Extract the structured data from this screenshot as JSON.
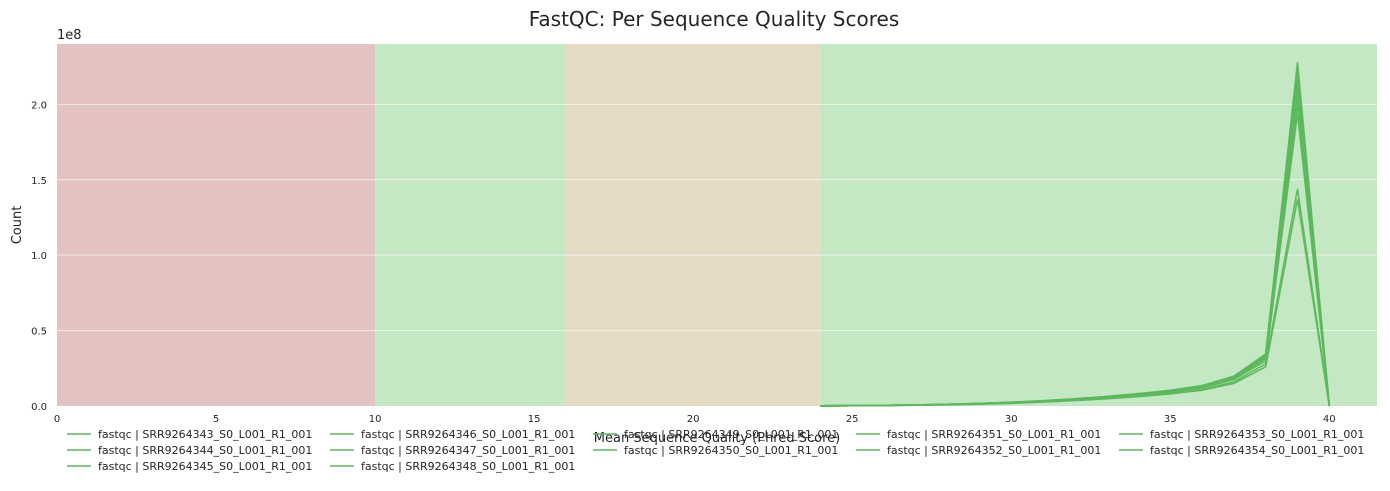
{
  "chart_data": {
    "type": "line",
    "title": "FastQC: Per Sequence Quality Scores",
    "xlabel": "Mean Sequence Quality (Phred Score)",
    "ylabel": "Count",
    "y_offset_label": "1e8",
    "xlim": [
      0,
      41.5
    ],
    "ylim": [
      0,
      2.4
    ],
    "x_ticks": [
      0,
      5,
      10,
      15,
      20,
      25,
      30,
      35,
      40
    ],
    "y_ticks": [
      0.0,
      0.5,
      1.0,
      1.5,
      2.0
    ],
    "y_tick_labels": [
      "0.0",
      "0.5",
      "1.0",
      "1.5",
      "2.0"
    ],
    "grid": true,
    "legend_position": "bottom",
    "background_bands": [
      {
        "from": 0,
        "to": 10,
        "color": "#e5c2c2",
        "status": "fail"
      },
      {
        "from": 10,
        "to": 16,
        "color": "#c4e7c4",
        "status": "pass"
      },
      {
        "from": 16,
        "to": 24,
        "color": "#e5dbc4",
        "status": "warn"
      },
      {
        "from": 24,
        "to": 41.5,
        "color": "#c4e7c4",
        "status": "pass"
      }
    ],
    "line_color": "#5cb85c",
    "x": [
      24,
      25,
      26,
      27,
      28,
      29,
      30,
      31,
      32,
      33,
      34,
      35,
      36,
      37,
      38,
      39,
      40
    ],
    "series": [
      {
        "name": "fastqc | SRR9264343_S0_L001_R1_001",
        "values": [
          0.001,
          0.002,
          0.003,
          0.005,
          0.008,
          0.012,
          0.018,
          0.026,
          0.036,
          0.048,
          0.062,
          0.08,
          0.105,
          0.15,
          0.26,
          1.37,
          0.0
        ]
      },
      {
        "name": "fastqc | SRR9264344_S0_L001_R1_001",
        "values": [
          0.001,
          0.002,
          0.004,
          0.006,
          0.01,
          0.015,
          0.022,
          0.031,
          0.042,
          0.056,
          0.072,
          0.092,
          0.12,
          0.175,
          0.3,
          1.94,
          0.0
        ]
      },
      {
        "name": "fastqc | SRR9264345_S0_L001_R1_001",
        "values": [
          0.001,
          0.002,
          0.004,
          0.006,
          0.01,
          0.016,
          0.023,
          0.032,
          0.044,
          0.058,
          0.075,
          0.096,
          0.125,
          0.185,
          0.32,
          2.1,
          0.0
        ]
      },
      {
        "name": "fastqc | SRR9264346_S0_L001_R1_001",
        "values": [
          0.001,
          0.002,
          0.004,
          0.007,
          0.011,
          0.017,
          0.024,
          0.034,
          0.047,
          0.062,
          0.08,
          0.102,
          0.132,
          0.195,
          0.34,
          2.25,
          0.0
        ]
      },
      {
        "name": "fastqc | SRR9264347_S0_L001_R1_001",
        "values": [
          0.001,
          0.002,
          0.004,
          0.007,
          0.011,
          0.017,
          0.025,
          0.035,
          0.048,
          0.063,
          0.082,
          0.104,
          0.135,
          0.198,
          0.345,
          2.28,
          0.0
        ]
      },
      {
        "name": "fastqc | SRR9264348_S0_L001_R1_001",
        "values": [
          0.001,
          0.002,
          0.004,
          0.006,
          0.01,
          0.016,
          0.023,
          0.033,
          0.045,
          0.06,
          0.077,
          0.099,
          0.128,
          0.19,
          0.33,
          2.18,
          0.0
        ]
      },
      {
        "name": "fastqc | SRR9264349_S0_L001_R1_001",
        "values": [
          0.001,
          0.002,
          0.003,
          0.005,
          0.009,
          0.013,
          0.019,
          0.028,
          0.038,
          0.05,
          0.065,
          0.084,
          0.11,
          0.16,
          0.28,
          1.44,
          0.0
        ]
      },
      {
        "name": "fastqc | SRR9264350_S0_L001_R1_001",
        "values": [
          0.001,
          0.002,
          0.004,
          0.006,
          0.01,
          0.016,
          0.023,
          0.032,
          0.044,
          0.058,
          0.075,
          0.096,
          0.125,
          0.185,
          0.32,
          2.05,
          0.0
        ]
      },
      {
        "name": "fastqc | SRR9264351_S0_L001_R1_001",
        "values": [
          0.001,
          0.002,
          0.004,
          0.007,
          0.011,
          0.017,
          0.024,
          0.034,
          0.047,
          0.062,
          0.08,
          0.102,
          0.132,
          0.195,
          0.34,
          2.23,
          0.0
        ]
      },
      {
        "name": "fastqc | SRR9264352_S0_L001_R1_001",
        "values": [
          0.001,
          0.002,
          0.004,
          0.006,
          0.01,
          0.016,
          0.023,
          0.033,
          0.045,
          0.06,
          0.078,
          0.1,
          0.129,
          0.192,
          0.335,
          2.2,
          0.0
        ]
      },
      {
        "name": "fastqc | SRR9264353_S0_L001_R1_001",
        "values": [
          0.001,
          0.002,
          0.004,
          0.006,
          0.01,
          0.015,
          0.022,
          0.031,
          0.043,
          0.057,
          0.074,
          0.094,
          0.122,
          0.18,
          0.315,
          2.0,
          0.0
        ]
      },
      {
        "name": "fastqc | SRR9264354_S0_L001_R1_001",
        "values": [
          0.001,
          0.002,
          0.004,
          0.007,
          0.011,
          0.017,
          0.024,
          0.034,
          0.046,
          0.061,
          0.079,
          0.101,
          0.131,
          0.194,
          0.338,
          2.15,
          0.0
        ]
      }
    ]
  }
}
